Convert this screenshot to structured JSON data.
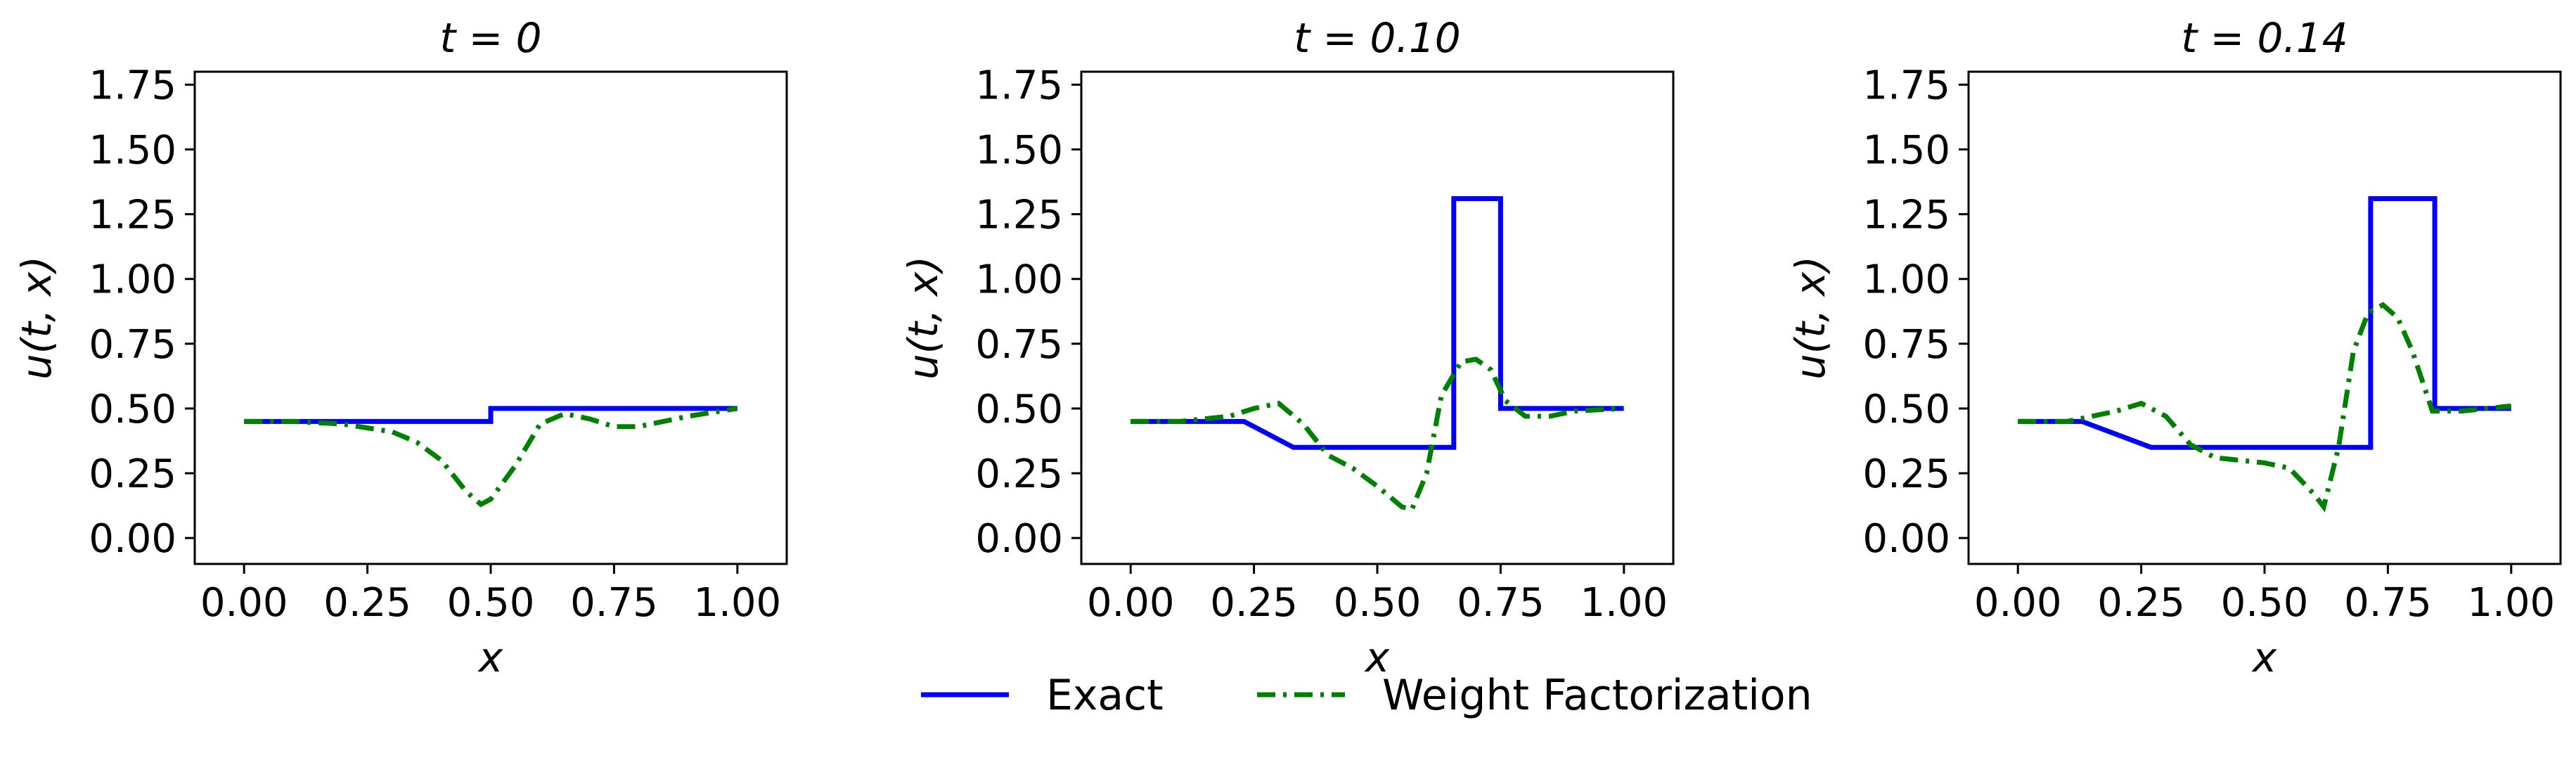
{
  "chart_data": [
    {
      "type": "line",
      "title": "t = 0",
      "xlabel": "x",
      "ylabel": "u(t, x)",
      "xlim": [
        -0.1,
        1.1
      ],
      "ylim": [
        -0.1,
        1.8
      ],
      "xticks": [
        "0.00",
        "0.25",
        "0.50",
        "0.75",
        "1.00"
      ],
      "yticks": [
        "0.00",
        "0.25",
        "0.50",
        "0.75",
        "1.00",
        "1.25",
        "1.50",
        "1.75"
      ],
      "grid": false,
      "series": [
        {
          "name": "Exact",
          "color": "#0000ff",
          "style": "solid",
          "x": [
            0.0,
            0.5,
            0.5,
            1.0
          ],
          "y": [
            0.45,
            0.45,
            0.5,
            0.5
          ]
        },
        {
          "name": "Weight Factorization",
          "color": "#008000",
          "style": "dashdot",
          "x": [
            0.0,
            0.1,
            0.2,
            0.3,
            0.35,
            0.4,
            0.45,
            0.48,
            0.5,
            0.55,
            0.6,
            0.65,
            0.7,
            0.75,
            0.8,
            0.9,
            1.0
          ],
          "y": [
            0.45,
            0.45,
            0.44,
            0.41,
            0.37,
            0.3,
            0.18,
            0.13,
            0.15,
            0.28,
            0.44,
            0.48,
            0.46,
            0.43,
            0.43,
            0.47,
            0.5
          ]
        }
      ]
    },
    {
      "type": "line",
      "title": "t = 0.10",
      "xlabel": "x",
      "ylabel": "u(t, x)",
      "xlim": [
        -0.1,
        1.1
      ],
      "ylim": [
        -0.1,
        1.8
      ],
      "xticks": [
        "0.00",
        "0.25",
        "0.50",
        "0.75",
        "1.00"
      ],
      "yticks": [
        "0.00",
        "0.25",
        "0.50",
        "0.75",
        "1.00",
        "1.25",
        "1.50",
        "1.75"
      ],
      "grid": false,
      "series": [
        {
          "name": "Exact",
          "color": "#0000ff",
          "style": "solid",
          "x": [
            0.0,
            0.23,
            0.33,
            0.655,
            0.655,
            0.75,
            0.75,
            1.0
          ],
          "y": [
            0.45,
            0.45,
            0.35,
            0.35,
            1.31,
            1.31,
            0.5,
            0.5
          ]
        },
        {
          "name": "Weight Factorization",
          "color": "#008000",
          "style": "dashdot",
          "x": [
            0.0,
            0.1,
            0.2,
            0.25,
            0.3,
            0.35,
            0.4,
            0.45,
            0.5,
            0.55,
            0.57,
            0.6,
            0.63,
            0.67,
            0.7,
            0.73,
            0.76,
            0.8,
            0.85,
            0.9,
            1.0
          ],
          "y": [
            0.45,
            0.45,
            0.47,
            0.5,
            0.52,
            0.44,
            0.32,
            0.27,
            0.2,
            0.12,
            0.11,
            0.25,
            0.55,
            0.68,
            0.69,
            0.65,
            0.53,
            0.47,
            0.47,
            0.49,
            0.5
          ]
        }
      ]
    },
    {
      "type": "line",
      "title": "t = 0.14",
      "xlabel": "x",
      "ylabel": "u(t, x)",
      "xlim": [
        -0.1,
        1.1
      ],
      "ylim": [
        -0.1,
        1.8
      ],
      "xticks": [
        "0.00",
        "0.25",
        "0.50",
        "0.75",
        "1.00"
      ],
      "yticks": [
        "0.00",
        "0.25",
        "0.50",
        "0.75",
        "1.00",
        "1.25",
        "1.50",
        "1.75"
      ],
      "grid": false,
      "series": [
        {
          "name": "Exact",
          "color": "#0000ff",
          "style": "solid",
          "x": [
            0.0,
            0.13,
            0.27,
            0.715,
            0.715,
            0.845,
            0.845,
            1.0
          ],
          "y": [
            0.45,
            0.45,
            0.35,
            0.35,
            1.31,
            1.31,
            0.5,
            0.5
          ]
        },
        {
          "name": "Weight Factorization",
          "color": "#008000",
          "style": "dashdot",
          "x": [
            0.0,
            0.1,
            0.2,
            0.25,
            0.3,
            0.35,
            0.4,
            0.45,
            0.5,
            0.55,
            0.6,
            0.62,
            0.65,
            0.68,
            0.71,
            0.74,
            0.77,
            0.8,
            0.84,
            0.9,
            1.0
          ],
          "y": [
            0.45,
            0.45,
            0.49,
            0.52,
            0.47,
            0.36,
            0.31,
            0.3,
            0.29,
            0.27,
            0.17,
            0.12,
            0.35,
            0.72,
            0.87,
            0.9,
            0.85,
            0.72,
            0.49,
            0.49,
            0.51
          ]
        }
      ]
    }
  ],
  "legend": {
    "placement": "bottom-center",
    "items": [
      {
        "label": "Exact",
        "color": "#0000ff",
        "style": "solid"
      },
      {
        "label": "Weight Factorization",
        "color": "#008000",
        "style": "dashdot"
      }
    ]
  }
}
